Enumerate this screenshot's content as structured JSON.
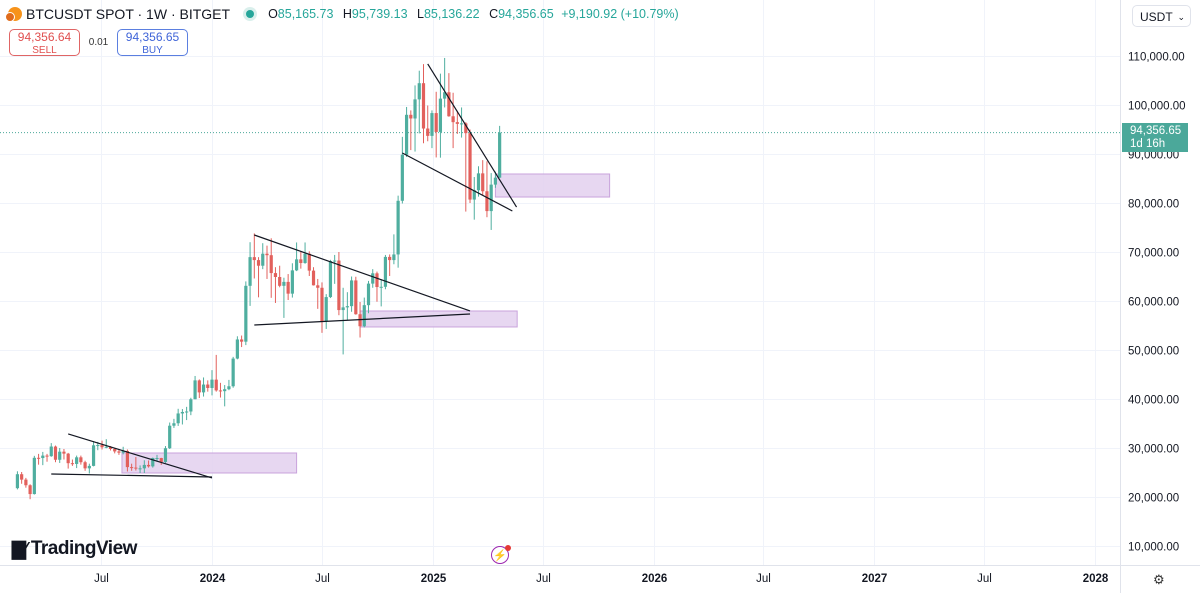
{
  "header": {
    "symbol_title": "BTCUSDT SPOT · 1W · BITGET",
    "ohlc": {
      "o_label": "O",
      "o": "85,165.73",
      "h_label": "H",
      "h": "95,739.13",
      "l_label": "L",
      "l": "85,136.22",
      "c_label": "C",
      "c": "94,356.65",
      "change": "+9,190.92 (+10.79%)"
    },
    "status_color": "#26a69a"
  },
  "trade": {
    "sell_price": "94,356.64",
    "sell_label": "SELL",
    "spread": "0.01",
    "buy_price": "94,356.65",
    "buy_label": "BUY"
  },
  "currency_select": "USDT",
  "last_price_tag": {
    "price": "94,356.65",
    "countdown": "1d 16h"
  },
  "branding": {
    "logo_text": "TradingView"
  },
  "colors": {
    "up": "#4fae9f",
    "down": "#e2605c",
    "zone": "#e3d0ef",
    "zone_border": "#c9a3dc",
    "trendline": "#131722",
    "grid": "#f0f3fa",
    "last_price": "#4ba89a"
  },
  "chart_data": {
    "type": "candlestick",
    "interval": "1W",
    "title": "",
    "y_axis": {
      "label": "USDT",
      "ylim": [
        8000,
        112000
      ],
      "ticks": [
        "10,000.00",
        "20,000.00",
        "30,000.00",
        "40,000.00",
        "50,000.00",
        "60,000.00",
        "70,000.00",
        "80,000.00",
        "90,000.00",
        "100,000.00",
        "110,000.00"
      ],
      "tick_values": [
        10000,
        20000,
        30000,
        40000,
        50000,
        60000,
        70000,
        80000,
        90000,
        100000,
        110000
      ]
    },
    "x_axis": {
      "range": [
        "2023-02-06",
        "2028-03-01"
      ],
      "ticks": [
        {
          "label": "Jul",
          "date": "2023-07-01",
          "bold": false
        },
        {
          "label": "2024",
          "date": "2024-01-01",
          "bold": true
        },
        {
          "label": "Jul",
          "date": "2024-07-01",
          "bold": false
        },
        {
          "label": "2025",
          "date": "2025-01-01",
          "bold": true
        },
        {
          "label": "Jul",
          "date": "2025-07-01",
          "bold": false
        },
        {
          "label": "2026",
          "date": "2026-01-01",
          "bold": true
        },
        {
          "label": "Jul",
          "date": "2026-07-01",
          "bold": false
        },
        {
          "label": "2027",
          "date": "2027-01-01",
          "bold": true
        },
        {
          "label": "Jul",
          "date": "2027-07-01",
          "bold": false
        },
        {
          "label": "2028",
          "date": "2028-01-01",
          "bold": true
        }
      ]
    },
    "grid": true,
    "last_price": 94356.65,
    "columns": [
      "date",
      "open",
      "high",
      "low",
      "close"
    ],
    "candles": [
      [
        "2023-02-13",
        21800,
        25250,
        21550,
        24650
      ],
      [
        "2023-02-20",
        24650,
        25100,
        22700,
        23550
      ],
      [
        "2023-02-27",
        23550,
        23900,
        21900,
        22400
      ],
      [
        "2023-03-06",
        22400,
        22600,
        19550,
        20600
      ],
      [
        "2023-03-13",
        20600,
        28400,
        20500,
        28000
      ],
      [
        "2023-03-20",
        28000,
        28800,
        26600,
        27950
      ],
      [
        "2023-03-27",
        27950,
        29200,
        26500,
        28450
      ],
      [
        "2023-04-03",
        28450,
        28800,
        27200,
        28330
      ],
      [
        "2023-04-10",
        28330,
        31000,
        28200,
        30300
      ],
      [
        "2023-04-17",
        30300,
        30500,
        27100,
        27600
      ],
      [
        "2023-04-24",
        27600,
        30000,
        26950,
        29250
      ],
      [
        "2023-05-01",
        29250,
        29800,
        27650,
        28850
      ],
      [
        "2023-05-08",
        28850,
        29000,
        25800,
        26900
      ],
      [
        "2023-05-15",
        26900,
        27650,
        26350,
        26750
      ],
      [
        "2023-05-22",
        26750,
        28450,
        25900,
        28100
      ],
      [
        "2023-05-29",
        28100,
        28450,
        26600,
        27100
      ],
      [
        "2023-06-05",
        27100,
        27400,
        25350,
        25850
      ],
      [
        "2023-06-12",
        25850,
        26800,
        24800,
        26350
      ],
      [
        "2023-06-19",
        26350,
        31400,
        26250,
        30550
      ],
      [
        "2023-06-26",
        30550,
        31250,
        29550,
        30600
      ],
      [
        "2023-07-03",
        30600,
        31500,
        29700,
        30150
      ],
      [
        "2023-07-10",
        30150,
        31800,
        29950,
        30250
      ],
      [
        "2023-07-17",
        30250,
        30400,
        29500,
        29800
      ],
      [
        "2023-07-24",
        29800,
        29950,
        28900,
        29300
      ],
      [
        "2023-07-31",
        29300,
        29800,
        28600,
        29050
      ],
      [
        "2023-08-07",
        29050,
        30250,
        28700,
        29400
      ],
      [
        "2023-08-14",
        29400,
        29700,
        25200,
        26100
      ],
      [
        "2023-08-21",
        26100,
        26800,
        25350,
        26000
      ],
      [
        "2023-08-28",
        26000,
        28150,
        25400,
        25850
      ],
      [
        "2023-09-04",
        25850,
        26450,
        24900,
        25850
      ],
      [
        "2023-09-11",
        25850,
        27500,
        24900,
        26550
      ],
      [
        "2023-09-18",
        26550,
        27450,
        26000,
        26250
      ],
      [
        "2023-09-25",
        26250,
        28050,
        26000,
        27950
      ],
      [
        "2023-10-02",
        27950,
        28600,
        27200,
        27950
      ],
      [
        "2023-10-09",
        27950,
        28000,
        26550,
        27150
      ],
      [
        "2023-10-16",
        27150,
        30400,
        26950,
        29950
      ],
      [
        "2023-10-23",
        29950,
        35200,
        29800,
        34550
      ],
      [
        "2023-10-30",
        34550,
        35950,
        34100,
        35050
      ],
      [
        "2023-11-06",
        35050,
        38000,
        34500,
        37050
      ],
      [
        "2023-11-13",
        37050,
        37950,
        34800,
        37350
      ],
      [
        "2023-11-20",
        37350,
        38400,
        35700,
        37450
      ],
      [
        "2023-11-27",
        37450,
        40250,
        36700,
        39950
      ],
      [
        "2023-12-04",
        39950,
        44700,
        39950,
        43800
      ],
      [
        "2023-12-11",
        43800,
        44000,
        40200,
        41350
      ],
      [
        "2023-12-18",
        41350,
        44400,
        40500,
        42950
      ],
      [
        "2023-12-25",
        42950,
        43800,
        41500,
        42250
      ],
      [
        "2024-01-01",
        42250,
        45900,
        40750,
        43950
      ],
      [
        "2024-01-08",
        43950,
        49000,
        41500,
        41750
      ],
      [
        "2024-01-15",
        41750,
        43300,
        40300,
        41600
      ],
      [
        "2024-01-22",
        41600,
        42850,
        38500,
        42000
      ],
      [
        "2024-01-29",
        42000,
        43900,
        41800,
        42600
      ],
      [
        "2024-02-05",
        42600,
        48600,
        42300,
        48250
      ],
      [
        "2024-02-12",
        48250,
        52800,
        48100,
        52150
      ],
      [
        "2024-02-19",
        52150,
        52950,
        50600,
        51700
      ],
      [
        "2024-02-26",
        51700,
        64000,
        51000,
        63100
      ],
      [
        "2024-03-04",
        63100,
        72000,
        59000,
        68950
      ],
      [
        "2024-03-11",
        68950,
        73800,
        64600,
        68350
      ],
      [
        "2024-03-18",
        68350,
        68950,
        60750,
        67200
      ],
      [
        "2024-03-25",
        67200,
        71800,
        66500,
        69650
      ],
      [
        "2024-04-01",
        69650,
        71300,
        64500,
        69350
      ],
      [
        "2024-04-08",
        69350,
        72800,
        60650,
        65700
      ],
      [
        "2024-04-15",
        65700,
        66900,
        59600,
        64900
      ],
      [
        "2024-04-22",
        64900,
        67200,
        62800,
        63100
      ],
      [
        "2024-04-29",
        63100,
        64750,
        56550,
        63900
      ],
      [
        "2024-05-06",
        63900,
        65500,
        60200,
        61500
      ],
      [
        "2024-05-13",
        61500,
        67700,
        60700,
        66250
      ],
      [
        "2024-05-20",
        66250,
        71950,
        66100,
        68500
      ],
      [
        "2024-05-27",
        68500,
        70000,
        66600,
        67750
      ],
      [
        "2024-06-03",
        67750,
        71950,
        67600,
        69650
      ],
      [
        "2024-06-10",
        69650,
        70150,
        65100,
        66200
      ],
      [
        "2024-06-17",
        66200,
        66900,
        63150,
        63200
      ],
      [
        "2024-06-24",
        63200,
        64500,
        58400,
        62700
      ],
      [
        "2024-07-01",
        62700,
        63800,
        53500,
        55850
      ],
      [
        "2024-07-08",
        55850,
        61400,
        54300,
        60800
      ],
      [
        "2024-07-15",
        60800,
        68400,
        60600,
        68150
      ],
      [
        "2024-07-22",
        68150,
        69400,
        63500,
        68250
      ],
      [
        "2024-07-29",
        68250,
        70000,
        57100,
        58150
      ],
      [
        "2024-08-05",
        58150,
        62700,
        49100,
        58700
      ],
      [
        "2024-08-12",
        58700,
        61800,
        56100,
        58950
      ],
      [
        "2024-08-19",
        58950,
        65000,
        57800,
        64200
      ],
      [
        "2024-08-26",
        64200,
        64950,
        57200,
        57300
      ],
      [
        "2024-09-02",
        57300,
        59800,
        52550,
        54850
      ],
      [
        "2024-09-09",
        54850,
        60700,
        54600,
        59150
      ],
      [
        "2024-09-16",
        59150,
        64100,
        57500,
        63550
      ],
      [
        "2024-09-23",
        63550,
        66500,
        62700,
        65650
      ],
      [
        "2024-09-30",
        65650,
        66000,
        59850,
        62850
      ],
      [
        "2024-10-07",
        62850,
        64450,
        58900,
        62900
      ],
      [
        "2024-10-14",
        62900,
        69400,
        62400,
        69000
      ],
      [
        "2024-10-21",
        69000,
        69500,
        65100,
        68350
      ],
      [
        "2024-10-28",
        68350,
        73600,
        67500,
        69500
      ],
      [
        "2024-11-04",
        69500,
        81500,
        66800,
        80450
      ],
      [
        "2024-11-11",
        80450,
        93500,
        79900,
        89850
      ],
      [
        "2024-11-18",
        89850,
        99600,
        89400,
        98000
      ],
      [
        "2024-11-25",
        98000,
        98900,
        90800,
        97250
      ],
      [
        "2024-12-02",
        97250,
        104000,
        90500,
        101150
      ],
      [
        "2024-12-09",
        101150,
        107000,
        94200,
        104450
      ],
      [
        "2024-12-16",
        104450,
        108350,
        92200,
        95200
      ],
      [
        "2024-12-23",
        95200,
        99900,
        92600,
        93700
      ],
      [
        "2024-12-30",
        93700,
        98900,
        91200,
        98350
      ],
      [
        "2025-01-06",
        98350,
        102700,
        89300,
        94500
      ],
      [
        "2025-01-13",
        94500,
        106400,
        89250,
        101300
      ],
      [
        "2025-01-20",
        101300,
        109600,
        99500,
        102600
      ],
      [
        "2025-01-27",
        102600,
        106500,
        97600,
        97700
      ],
      [
        "2025-02-03",
        97700,
        102500,
        91200,
        96500
      ],
      [
        "2025-02-10",
        96500,
        98800,
        94100,
        96150
      ],
      [
        "2025-02-17",
        96150,
        99500,
        93350,
        96250
      ],
      [
        "2025-02-24",
        96250,
        96500,
        78250,
        94250
      ],
      [
        "2025-03-03",
        94250,
        95000,
        80000,
        80700
      ],
      [
        "2025-03-10",
        80700,
        85300,
        76600,
        82600
      ],
      [
        "2025-03-17",
        82600,
        87500,
        81300,
        86050
      ],
      [
        "2025-03-24",
        86050,
        88750,
        81600,
        82400
      ],
      [
        "2025-03-31",
        82400,
        88500,
        77100,
        78350
      ],
      [
        "2025-04-07",
        78350,
        86100,
        74500,
        83750
      ],
      [
        "2025-04-14",
        83750,
        86400,
        83100,
        85170
      ],
      [
        "2025-04-21",
        85165.73,
        95739.13,
        85136.22,
        94356.65
      ]
    ],
    "trendlines": [
      {
        "from": [
          "2023-05-08",
          32860
        ],
        "to": [
          "2024-01-01",
          23880
        ]
      },
      {
        "from": [
          "2023-04-10",
          24700
        ],
        "to": [
          "2024-01-01",
          24080
        ]
      },
      {
        "from": [
          "2024-03-11",
          73470
        ],
        "to": [
          "2025-03-03",
          57960
        ]
      },
      {
        "from": [
          "2024-03-11",
          55100
        ],
        "to": [
          "2025-03-03",
          57350
        ]
      },
      {
        "from": [
          "2024-12-23",
          108370
        ],
        "to": [
          "2025-05-19",
          79180
        ]
      },
      {
        "from": [
          "2024-11-11",
          90200
        ],
        "to": [
          "2025-05-12",
          78370
        ]
      }
    ],
    "zones": [
      {
        "from": "2023-08-05",
        "to": "2024-05-20",
        "top": 28980,
        "bottom": 24900
      },
      {
        "from": "2024-09-02",
        "to": "2025-05-20",
        "top": 57960,
        "bottom": 54700
      },
      {
        "from": "2025-04-14",
        "to": "2025-10-20",
        "top": 85920,
        "bottom": 81220
      }
    ]
  }
}
